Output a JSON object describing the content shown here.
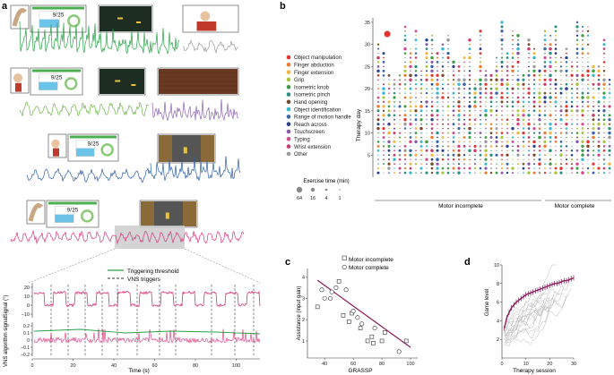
{
  "panels": {
    "a": "a",
    "b": "b",
    "c": "c",
    "d": "d"
  },
  "colors": {
    "exercises": [
      "#e8302a",
      "#f07a2e",
      "#f2b53a",
      "#a8c63b",
      "#3c9e43",
      "#2a8f83",
      "#7a4a2c",
      "#34b8d4",
      "#3a63ae",
      "#2c3f8f",
      "#8a57a8",
      "#d6488f",
      "#c73c6a",
      "#9a9a9a"
    ],
    "trace_green": "#2aa147",
    "trace_gray": "#9a9a9a",
    "trace_lgreen": "#6fb84a",
    "trace_purple": "#8a63b5",
    "trace_blue": "#2f5fa8",
    "trace_pink": "#d9347a",
    "threshold": "#2aa147",
    "fit_line": "#8a1a5a",
    "game_trace": "#8a1a5a"
  },
  "panel_a": {
    "counter": "9/25",
    "legend_threshold": "Triggering threshold",
    "legend_vns": "VNS triggers",
    "ylabel_signal": "Signal (°)",
    "ylabel_vns": "VNS algorithm signal",
    "xlabel": "Time (s)",
    "signal_ticks": [
      "20",
      "10",
      "0",
      "–10"
    ],
    "vns_ticks": [
      "0.2",
      "0.1",
      "0",
      "–0.1",
      "–0.2"
    ],
    "time_ticks": [
      "0",
      "20",
      "40",
      "60",
      "80",
      "100"
    ]
  },
  "panel_b": {
    "legend": [
      "Object manipulation",
      "Finger abduction",
      "Finger extension",
      "Grip",
      "Isometric knob",
      "Isometric pinch",
      "Hand opening",
      "Object identification",
      "Range of motion handle",
      "Reach across",
      "Touchscreen",
      "Typing",
      "Wrist extension",
      "Other"
    ],
    "size_title": "Exercise time (min)",
    "size_labels": [
      "64",
      "16",
      "4",
      "1"
    ],
    "ylabel": "Therapy day",
    "y_ticks": [
      "35",
      "30",
      "25",
      "20",
      "15",
      "10",
      "5"
    ],
    "group_incomplete": "Motor incomplete",
    "group_complete": "Motor complete"
  },
  "chart_data": [
    {
      "type": "scatter",
      "title": "",
      "xlabel": "GRASSP",
      "ylabel": "Assistance (input gain)",
      "xlim": [
        28,
        105
      ],
      "ylim": [
        0.2,
        4.4
      ],
      "x_ticks": [
        "40",
        "60",
        "80",
        "100"
      ],
      "y_ticks": [
        "4",
        "3",
        "2",
        "1"
      ],
      "legend": [
        "Motor incomplete",
        "Motor complete"
      ],
      "series": [
        {
          "name": "Motor incomplete",
          "points": [
            [
              35,
              2.6
            ],
            [
              50,
              3.8
            ],
            [
              53,
              2.2
            ],
            [
              57,
              1.9
            ],
            [
              59,
              2.3
            ],
            [
              65,
              1.6
            ],
            [
              70,
              1.0
            ],
            [
              73,
              1.2
            ],
            [
              74,
              0.9
            ],
            [
              80,
              1.0
            ],
            [
              82,
              1.4
            ],
            [
              97,
              1.0
            ]
          ]
        },
        {
          "name": "Motor complete",
          "points": [
            [
              38,
              3.4
            ],
            [
              40,
              3.0
            ],
            [
              44,
              3.0
            ],
            [
              45,
              3.3
            ],
            [
              48,
              3.5
            ],
            [
              55,
              3.4
            ],
            [
              60,
              2.4
            ],
            [
              63,
              2.1
            ],
            [
              66,
              1.8
            ],
            [
              75,
              1.6
            ],
            [
              92,
              0.5
            ]
          ]
        }
      ],
      "fit": {
        "x": [
          35,
          100
        ],
        "y": [
          3.85,
          0.7
        ]
      }
    },
    {
      "type": "line",
      "title": "",
      "xlabel": "Therapy session",
      "ylabel": "Game level",
      "xlim": [
        0,
        30
      ],
      "ylim": [
        0,
        10
      ],
      "x_ticks": [
        "0",
        "10",
        "20",
        "30"
      ],
      "y_ticks": [
        "10",
        "8",
        "6",
        "4",
        "2"
      ],
      "mean": {
        "x": [
          1,
          2,
          3,
          4,
          5,
          6,
          7,
          8,
          9,
          10,
          11,
          12,
          13,
          14,
          15,
          16,
          17,
          18,
          19,
          20,
          21,
          22,
          23,
          24,
          25,
          26,
          27,
          28,
          29,
          30
        ],
        "y": [
          3.2,
          4.3,
          4.9,
          5.4,
          5.7,
          6.0,
          6.2,
          6.4,
          6.6,
          6.8,
          6.9,
          7.0,
          7.1,
          7.2,
          7.3,
          7.4,
          7.5,
          7.6,
          7.7,
          7.8,
          7.9,
          8.0,
          8.0,
          8.1,
          8.2,
          8.3,
          8.3,
          8.4,
          8.5,
          8.6
        ]
      }
    }
  ]
}
